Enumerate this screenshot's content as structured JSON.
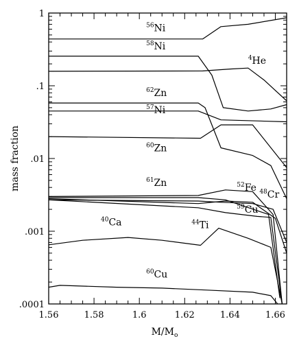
{
  "chart_data": {
    "type": "line",
    "xlabel": "M/M",
    "xlabel_sub": "o",
    "ylabel": "mass fraction",
    "y_scale": "log",
    "xlim": [
      1.56,
      1.665
    ],
    "ylim": [
      0.0001,
      1
    ],
    "x_ticks": [
      1.56,
      1.58,
      1.6,
      1.62,
      1.64,
      1.66
    ],
    "x_tick_labels": [
      "1.56",
      "1.58",
      "1.6",
      "1.62",
      "1.64",
      "1.66"
    ],
    "y_ticks": [
      0.0001,
      0.001,
      0.01,
      0.1,
      1
    ],
    "y_tick_labels": [
      ".0001",
      ".001",
      ".01",
      ".1",
      "1"
    ],
    "grid": false,
    "series": [
      {
        "name": "56Ni",
        "label_mass": "56",
        "label_elem": "Ni",
        "label_at": [
          1.603,
          0.56
        ],
        "points": [
          [
            1.56,
            0.44
          ],
          [
            1.628,
            0.44
          ],
          [
            1.636,
            0.65
          ],
          [
            1.648,
            0.7
          ],
          [
            1.665,
            0.86
          ]
        ]
      },
      {
        "name": "58Ni",
        "label_mass": "58",
        "label_elem": "Ni",
        "label_at": [
          1.603,
          0.315
        ],
        "points": [
          [
            1.56,
            0.255
          ],
          [
            1.626,
            0.255
          ],
          [
            1.632,
            0.14
          ],
          [
            1.637,
            0.05
          ],
          [
            1.648,
            0.045
          ],
          [
            1.658,
            0.048
          ],
          [
            1.665,
            0.055
          ]
        ]
      },
      {
        "name": "4He",
        "label_mass": "4",
        "label_elem": "He",
        "label_at": [
          1.648,
          0.2
        ],
        "points": [
          [
            1.56,
            0.158
          ],
          [
            1.628,
            0.16
          ],
          [
            1.64,
            0.17
          ],
          [
            1.648,
            0.175
          ],
          [
            1.655,
            0.12
          ],
          [
            1.665,
            0.062
          ]
        ]
      },
      {
        "name": "62Zn",
        "label_mass": "62",
        "label_elem": "Zn",
        "label_at": [
          1.603,
          0.072
        ],
        "points": [
          [
            1.56,
            0.058
          ],
          [
            1.626,
            0.058
          ],
          [
            1.629,
            0.05
          ],
          [
            1.636,
            0.014
          ],
          [
            1.65,
            0.011
          ],
          [
            1.658,
            0.008
          ],
          [
            1.665,
            0.0028
          ]
        ]
      },
      {
        "name": "57Ni",
        "label_mass": "57",
        "label_elem": "Ni",
        "label_at": [
          1.603,
          0.042
        ],
        "points": [
          [
            1.56,
            0.045
          ],
          [
            1.626,
            0.045
          ],
          [
            1.636,
            0.034
          ],
          [
            1.665,
            0.032
          ]
        ]
      },
      {
        "name": "60Zn",
        "label_mass": "60",
        "label_elem": "Zn",
        "label_at": [
          1.603,
          0.0125
        ],
        "points": [
          [
            1.56,
            0.02
          ],
          [
            1.627,
            0.019
          ],
          [
            1.636,
            0.029
          ],
          [
            1.65,
            0.029
          ],
          [
            1.665,
            0.0075
          ]
        ]
      },
      {
        "name": "61Zn",
        "label_mass": "61",
        "label_elem": "Zn",
        "label_at": [
          1.603,
          0.0042
        ],
        "points": [
          [
            1.56,
            0.0029
          ],
          [
            1.626,
            0.0029
          ],
          [
            1.638,
            0.0027
          ],
          [
            1.657,
            0.0017
          ],
          [
            1.662,
            0.00012
          ]
        ]
      },
      {
        "name": "52Fe",
        "label_mass": "52",
        "label_elem": "Fe",
        "label_at": [
          1.643,
          0.0036
        ],
        "points": [
          [
            1.56,
            0.003
          ],
          [
            1.626,
            0.0031
          ],
          [
            1.638,
            0.0037
          ],
          [
            1.65,
            0.0035
          ],
          [
            1.659,
            0.0017
          ],
          [
            1.663,
            0.0001
          ]
        ]
      },
      {
        "name": "48Cr",
        "label_mass": "48",
        "label_elem": "Cr",
        "label_at": [
          1.653,
          0.0029
        ],
        "points": [
          [
            1.56,
            0.0028
          ],
          [
            1.626,
            0.0024
          ],
          [
            1.638,
            0.0026
          ],
          [
            1.65,
            0.0025
          ],
          [
            1.66,
            0.0015
          ],
          [
            1.665,
            0.0005
          ]
        ]
      },
      {
        "name": "59Cu",
        "label_mass": "59",
        "label_elem": "Cu",
        "label_at": [
          1.643,
          0.0018
        ],
        "points": [
          [
            1.56,
            0.0027
          ],
          [
            1.626,
            0.0021
          ],
          [
            1.638,
            0.0018
          ],
          [
            1.652,
            0.0016
          ],
          [
            1.658,
            0.00155
          ],
          [
            1.663,
            0.0001
          ]
        ]
      },
      {
        "name": "44Ti",
        "label_mass": "44",
        "label_elem": "Ti",
        "label_at": [
          1.623,
          0.0011
        ],
        "points": [
          [
            1.56,
            0.0027
          ],
          [
            1.626,
            0.0026
          ],
          [
            1.636,
            0.0025
          ],
          [
            1.65,
            0.0024
          ],
          [
            1.659,
            0.002
          ],
          [
            1.665,
            0.0007
          ]
        ]
      },
      {
        "name": "40Ca",
        "label_mass": "40",
        "label_elem": "Ca",
        "label_at": [
          1.583,
          0.0012
        ],
        "points": [
          [
            1.56,
            0.00065
          ],
          [
            1.575,
            0.00075
          ],
          [
            1.595,
            0.00082
          ],
          [
            1.61,
            0.00075
          ],
          [
            1.627,
            0.00064
          ],
          [
            1.635,
            0.0011
          ],
          [
            1.648,
            0.0008
          ],
          [
            1.658,
            0.0006
          ],
          [
            1.663,
            0.0001
          ]
        ]
      },
      {
        "name": "60Cu",
        "label_mass": "60",
        "label_elem": "Cu",
        "label_at": [
          1.603,
          0.00023
        ],
        "points": [
          [
            1.56,
            0.00017
          ],
          [
            1.565,
            0.00018
          ],
          [
            1.59,
            0.00017
          ],
          [
            1.61,
            0.000165
          ],
          [
            1.63,
            0.000155
          ],
          [
            1.65,
            0.000145
          ],
          [
            1.658,
            0.00013
          ],
          [
            1.661,
            0.0001
          ]
        ]
      }
    ]
  }
}
